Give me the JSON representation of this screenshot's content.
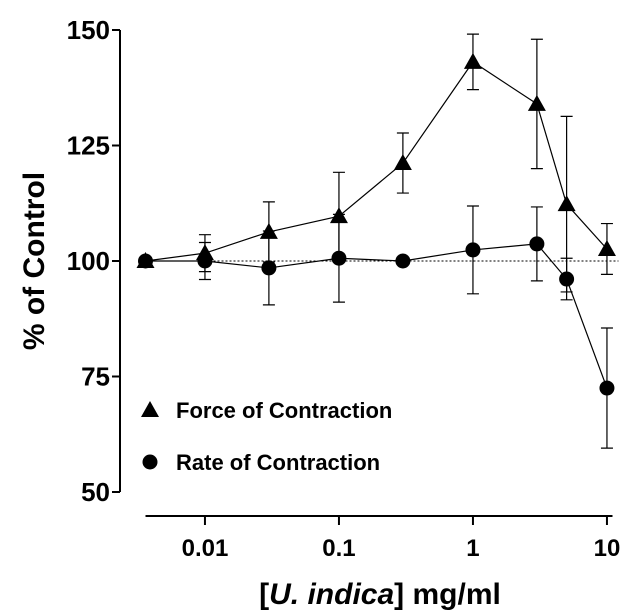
{
  "chart_data": {
    "type": "line",
    "y_label": "% of Control",
    "x_label": [
      "[",
      "U. indica",
      "] mg/ml"
    ],
    "x": [
      0.0036,
      0.01,
      0.03,
      0.1,
      0.3,
      1,
      3,
      5,
      10
    ],
    "series": [
      {
        "name": "Force of Contraction",
        "color": "#000000",
        "marker": "triangle",
        "values": [
          100,
          101.7,
          106.3,
          109.7,
          121.2,
          143.1,
          134,
          112.3,
          102.6
        ],
        "errors": [
          0,
          4,
          6.5,
          9.5,
          6.5,
          6,
          14,
          19,
          5.5
        ]
      },
      {
        "name": "Rate of Contraction",
        "color": "#000000",
        "marker": "circle",
        "values": [
          100,
          100,
          98.5,
          100.6,
          100,
          102.4,
          103.7,
          96.1,
          72.5
        ],
        "errors": [
          0,
          4,
          8,
          9.5,
          0,
          9.5,
          8,
          4.5,
          13
        ]
      }
    ],
    "xscale": "log",
    "xlim": [
      0.0036,
      11
    ],
    "xticks": [
      0.01,
      0.1,
      1,
      10
    ],
    "ylim": [
      50,
      150
    ],
    "yticks": [
      50,
      75,
      100,
      125,
      150
    ],
    "reference_line": 100,
    "legend": "lower left"
  }
}
